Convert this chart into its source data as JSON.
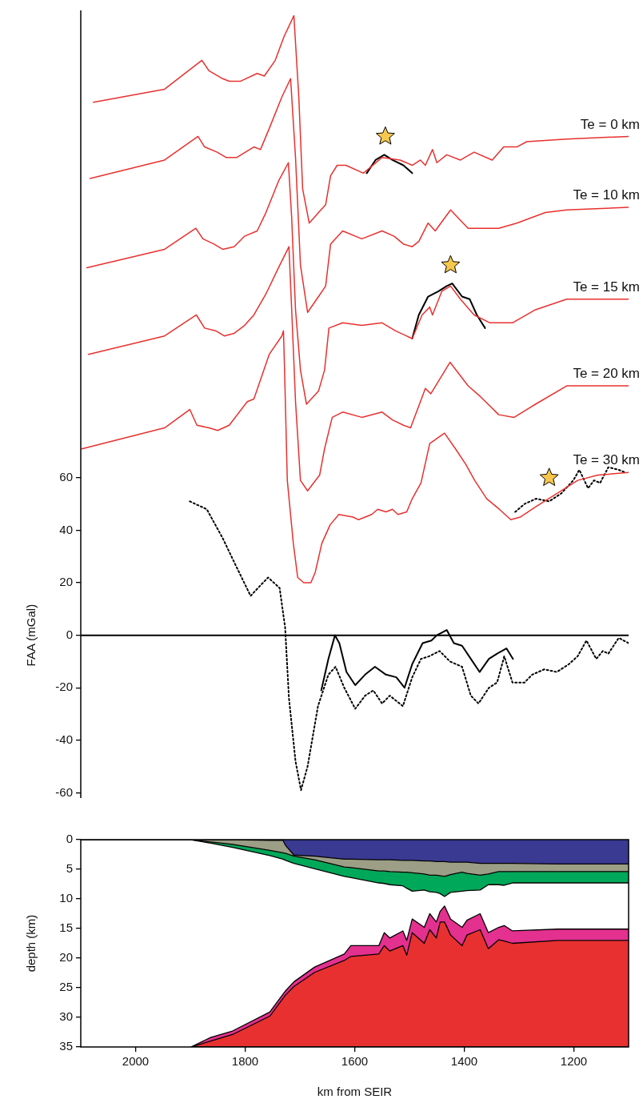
{
  "chart_data": [
    {
      "type": "line",
      "ylabel": "FAA (mGal)",
      "xlim": [
        2100,
        1100
      ],
      "ylim": [
        -62,
        238
      ],
      "yticks": [
        -60,
        -40,
        -20,
        0,
        20,
        40,
        60
      ],
      "tick_labels": "y",
      "ref_lines": [
        {
          "axis": "y",
          "value": 0,
          "color": "#000000"
        }
      ],
      "series": [
        {
          "name": "Te = 0 km",
          "color": "#e8312f",
          "x": [
            2077,
            1947,
            1879,
            1866,
            1841,
            1829,
            1809,
            1778,
            1765,
            1745,
            1729,
            1711,
            1702,
            1695,
            1683,
            1666,
            1653,
            1644,
            1632,
            1616,
            1584,
            1550,
            1517,
            1495,
            1480,
            1471,
            1458,
            1450,
            1432,
            1407,
            1382,
            1349,
            1328,
            1304,
            1286,
            1213,
            1100
          ],
          "values": [
            203,
            208,
            219,
            215,
            212,
            211,
            211,
            214,
            213,
            219,
            228,
            236,
            205,
            170,
            157,
            161,
            164,
            175,
            179,
            179,
            176,
            182,
            181,
            179,
            181,
            179,
            185,
            180,
            183,
            181,
            184,
            181,
            186,
            186,
            188,
            189,
            190
          ]
        },
        {
          "name": "Te = 10 km",
          "color": "#e8312f",
          "x": [
            2083,
            1947,
            1886,
            1874,
            1851,
            1835,
            1815,
            1784,
            1772,
            1756,
            1733,
            1717,
            1708,
            1699,
            1686,
            1666,
            1653,
            1644,
            1622,
            1587,
            1550,
            1528,
            1511,
            1495,
            1483,
            1466,
            1453,
            1425,
            1393,
            1365,
            1337,
            1304,
            1252,
            1213,
            1100
          ],
          "values": [
            174,
            181,
            190,
            186,
            184,
            182,
            182,
            186,
            185,
            193,
            205,
            212,
            182,
            141,
            123,
            129,
            133,
            149,
            154,
            151,
            154,
            152,
            149,
            148,
            150,
            157,
            154,
            162,
            155,
            155,
            155,
            157,
            161,
            162,
            163
          ]
        },
        {
          "name": "Te = 15 km",
          "color": "#e8312f",
          "x": [
            2089,
            1947,
            1890,
            1877,
            1857,
            1841,
            1820,
            1801,
            1778,
            1762,
            1739,
            1721,
            1715,
            1708,
            1699,
            1688,
            1666,
            1655,
            1647,
            1622,
            1587,
            1550,
            1526,
            1495,
            1477,
            1463,
            1458,
            1441,
            1425,
            1407,
            1382,
            1353,
            1334,
            1312,
            1270,
            1213,
            1100
          ],
          "values": [
            140,
            147,
            155,
            151,
            149,
            147,
            148,
            152,
            154,
            161,
            173,
            180,
            159,
            124,
            101,
            88,
            93,
            101,
            117,
            119,
            118,
            119,
            116,
            113,
            122,
            125,
            122,
            131,
            133,
            128,
            122,
            119,
            119,
            119,
            124,
            128,
            128
          ]
        },
        {
          "name": "Te = 20 km",
          "color": "#e8312f",
          "x": [
            2086,
            1947,
            1889,
            1874,
            1854,
            1838,
            1820,
            1801,
            1784,
            1762,
            1739,
            1720,
            1715,
            1708,
            1699,
            1686,
            1664,
            1655,
            1641,
            1622,
            1587,
            1550,
            1531,
            1511,
            1498,
            1480,
            1471,
            1461,
            1426,
            1393,
            1371,
            1337,
            1309,
            1270,
            1213,
            1100
          ],
          "values": [
            107,
            114,
            122,
            117,
            116,
            114,
            115,
            118,
            122,
            130,
            140,
            148,
            124,
            89,
            59,
            55,
            61,
            71,
            83,
            85,
            83,
            85,
            82,
            80,
            79,
            89,
            94,
            92,
            104,
            95,
            91,
            84,
            83,
            88,
            95,
            95
          ]
        },
        {
          "name": "Te = 30 km",
          "color": "#e8312f",
          "x": [
            2098,
            1947,
            1901,
            1888,
            1866,
            1850,
            1829,
            1796,
            1784,
            1756,
            1733,
            1730,
            1728,
            1723,
            1712,
            1704,
            1693,
            1680,
            1672,
            1660,
            1645,
            1629,
            1603,
            1593,
            1569,
            1558,
            1543,
            1531,
            1521,
            1505,
            1495,
            1479,
            1463,
            1436,
            1416,
            1397,
            1381,
            1359,
            1336,
            1315,
            1298,
            1269,
            1231,
            1193,
            1156,
            1100
          ],
          "values": [
            71,
            79,
            86,
            80,
            79,
            78,
            80,
            89,
            90,
            107,
            114,
            116,
            101,
            59,
            35,
            22,
            20,
            20,
            24,
            35,
            42,
            46,
            45,
            44,
            46,
            48,
            47,
            48,
            46,
            47,
            52,
            58,
            73,
            77,
            71,
            65,
            59,
            52,
            48,
            44,
            45,
            49,
            54,
            59,
            61,
            62
          ]
        },
        {
          "color": "#000000",
          "line_style": "dotted",
          "x": [
            1901,
            1870,
            1841,
            1818,
            1790,
            1772,
            1758,
            1737,
            1727,
            1720,
            1708,
            1698,
            1686,
            1667,
            1648,
            1635,
            1619,
            1599,
            1581,
            1566,
            1550,
            1536,
            1512,
            1495,
            1479,
            1464,
            1445,
            1426,
            1404,
            1388,
            1374,
            1355,
            1340,
            1327,
            1312,
            1290,
            1276,
            1254,
            1231,
            1209,
            1193,
            1177,
            1159,
            1147,
            1137,
            1118,
            1100
          ],
          "values": [
            51,
            48,
            37,
            27,
            15,
            19,
            22,
            18,
            3,
            -24,
            -48,
            -59,
            -50,
            -27,
            -15,
            -12,
            -20,
            -28,
            -23,
            -21,
            -26,
            -23,
            -27,
            -16,
            -9,
            -8,
            -6,
            -10,
            -12,
            -23,
            -26,
            -20,
            -18,
            -8,
            -18,
            -18,
            -15,
            -13,
            -14,
            -11,
            -8,
            -2,
            -9,
            -6,
            -7,
            -1,
            -3
          ]
        },
        {
          "color": "#000000",
          "line_style": "solid",
          "x": [
            1661,
            1648,
            1636,
            1628,
            1615,
            1599,
            1581,
            1563,
            1543,
            1524,
            1509,
            1495,
            1476,
            1460,
            1450,
            1432,
            1419,
            1404,
            1388,
            1372,
            1355,
            1340,
            1323,
            1311
          ],
          "values": [
            -21,
            -9,
            0,
            -3,
            -14,
            -19,
            -15,
            -12,
            -15,
            -16,
            -20,
            -11,
            -3,
            -2,
            0,
            2,
            -3,
            -4,
            -9,
            -14,
            -9,
            -7,
            -5,
            -9
          ]
        },
        {
          "color": "#000000",
          "line_style": "solid",
          "x": [
            1578,
            1562,
            1546,
            1531,
            1511,
            1495
          ],
          "values": [
            176,
            181,
            183,
            181,
            179,
            176
          ]
        },
        {
          "color": "#000000",
          "line_style": "solid",
          "x": [
            1495,
            1483,
            1466,
            1447,
            1432,
            1422,
            1404,
            1390,
            1377,
            1362
          ],
          "values": [
            113,
            122,
            129,
            131,
            133,
            134,
            129,
            128,
            122,
            117
          ]
        },
        {
          "color": "#000000",
          "line_style": "dotted",
          "x": [
            1307,
            1290,
            1269,
            1245,
            1223,
            1201,
            1190,
            1174,
            1163,
            1152,
            1137,
            1118,
            1106
          ],
          "values": [
            47,
            50,
            52,
            51,
            54,
            59,
            63,
            56,
            59,
            58,
            64,
            63,
            62
          ]
        },
        {
          "type": "scatter",
          "marker": "star",
          "color": "#f7c74d",
          "x": [
            1544,
            1425,
            1245
          ],
          "values": [
            190,
            141,
            60
          ]
        }
      ]
    },
    {
      "type": "area",
      "stacked": true,
      "xlabel": "km from SEIR",
      "ylabel": "depth (km)",
      "xlim": [
        2100,
        1100
      ],
      "xticks": [
        2000,
        1800,
        1600,
        1400,
        1200
      ],
      "ylim": [
        35,
        0
      ],
      "yticks": [
        0,
        5,
        10,
        15,
        20,
        25,
        30,
        35
      ],
      "x": [
        2100,
        1899,
        1863,
        1823,
        1755,
        1731,
        1726,
        1711,
        1673,
        1619,
        1607,
        1556,
        1546,
        1536,
        1512,
        1505,
        1495,
        1473,
        1463,
        1451,
        1444,
        1436,
        1425,
        1404,
        1395,
        1371,
        1356,
        1337,
        1327,
        1312,
        1229,
        1100
      ],
      "series": [
        {
          "color": "#3a3a93",
          "values": [
            0,
            0,
            0,
            0,
            0.1,
            0.1,
            1.0,
            2.6,
            2.8,
            3.3,
            3.3,
            3.4,
            3.4,
            3.4,
            3.5,
            3.5,
            3.5,
            3.6,
            3.6,
            3.7,
            3.7,
            3.7,
            3.8,
            3.8,
            3.8,
            4.0,
            4.0,
            4.0,
            4.0,
            4.0,
            4.1,
            4.1
          ]
        },
        {
          "color": "#9c9e85",
          "values": [
            0,
            0,
            0.4,
            0.8,
            1.7,
            2.1,
            1.3,
            0.2,
            0.6,
            1.3,
            1.4,
            1.9,
            1.9,
            2.0,
            2.0,
            2.0,
            2.1,
            2.2,
            2.4,
            2.3,
            2.4,
            2.5,
            2.1,
            1.7,
            1.9,
            2.0,
            1.8,
            1.4,
            1.4,
            1.4,
            1.3,
            1.3
          ]
        },
        {
          "color": "#00a859",
          "values": [
            0,
            0,
            0.2,
            0.5,
            0.9,
            1.1,
            1.2,
            1.2,
            1.5,
            1.6,
            1.7,
            2.0,
            2.1,
            2.2,
            2.3,
            2.7,
            3.1,
            2.7,
            2.8,
            2.9,
            3.0,
            3.4,
            3.0,
            3.2,
            2.9,
            2.5,
            1.8,
            2.2,
            2.3,
            1.9,
            1.9,
            1.9
          ]
        },
        {
          "color": "#ffffff",
          "values": [
            null,
            35,
            32.8,
            31.0,
            26.4,
            22.8,
            22.0,
            20.0,
            16.6,
            13.1,
            11.5,
            10.6,
            8.3,
            9.0,
            7.6,
            8.8,
            4.7,
            6.3,
            3.7,
            5.0,
            3.0,
            1.6,
            4.5,
            6.1,
            5.0,
            4.0,
            8.1,
            7.2,
            6.8,
            8.1,
            7.8,
            7.8
          ]
        },
        {
          "color": "#e4308f",
          "values": [
            null,
            0,
            0.6,
            0.6,
            0.7,
            0.7,
            0.7,
            0.8,
            0.9,
            1.1,
            1.8,
            1.4,
            2.2,
            2.2,
            2.5,
            2.5,
            2.3,
            2.7,
            2.7,
            2.7,
            1.8,
            2.7,
            2.7,
            3.1,
            2.5,
            2.7,
            2.7,
            2.1,
            2.6,
            2.1,
            1.9,
            1.9
          ]
        },
        {
          "color": "#e83030",
          "values": [
            null,
            0,
            1.0,
            2.1,
            5.2,
            8.2,
            8.8,
            10.2,
            12.6,
            14.6,
            15.3,
            15.7,
            17.1,
            16.2,
            17.1,
            15.5,
            19.3,
            17.5,
            19.8,
            18.4,
            21.1,
            21.1,
            18.9,
            17.1,
            18.9,
            19.8,
            16.6,
            18.1,
            17.9,
            17.5,
            18.0,
            18.0
          ]
        }
      ]
    }
  ]
}
